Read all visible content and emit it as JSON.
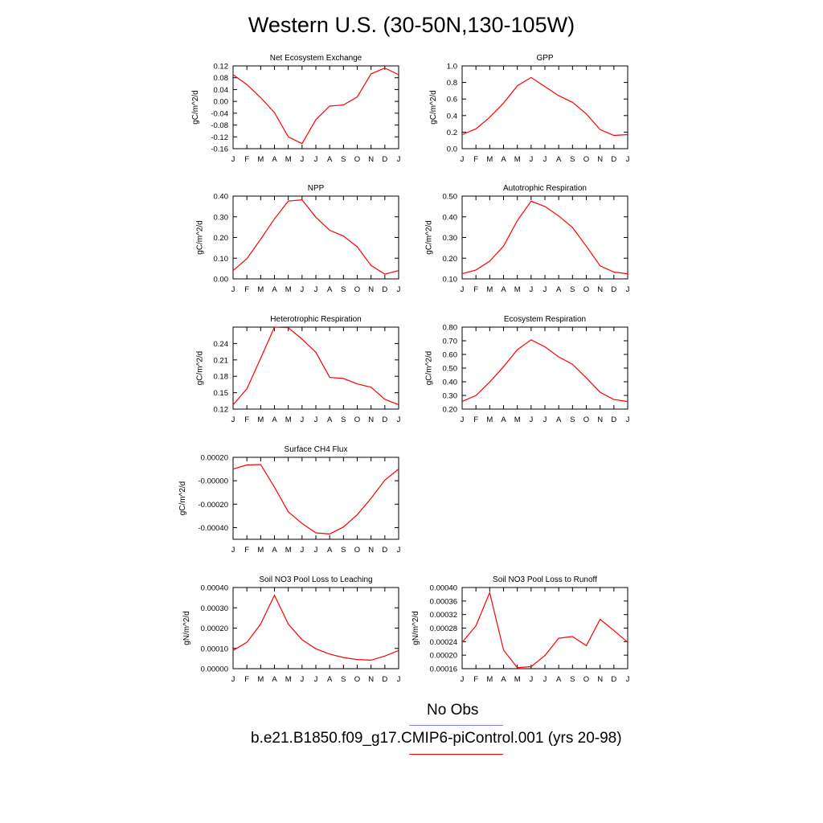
{
  "page": {
    "title": "Western U.S. (30-50N,130-105W)"
  },
  "months": [
    "J",
    "F",
    "M",
    "A",
    "M",
    "J",
    "J",
    "A",
    "S",
    "O",
    "N",
    "D",
    "J"
  ],
  "colors": {
    "model": "#ff0000",
    "obs": "#8080ff",
    "axis": "#000000"
  },
  "legend": {
    "obs_label": "No Obs",
    "model_label": "b.e21.B1850.f09_g17.CMIP6-piControl.001 (yrs 20-98)"
  },
  "chart_data": [
    {
      "type": "line",
      "title": "Net Ecosystem Exchange",
      "ylabel": "gC/m^2/d",
      "categories": [
        "J",
        "F",
        "M",
        "A",
        "M",
        "J",
        "J",
        "A",
        "S",
        "O",
        "N",
        "D",
        "J"
      ],
      "ylim": [
        -0.16,
        0.12
      ],
      "yticks": [
        0.12,
        0.08,
        0.04,
        0.0,
        -0.04,
        -0.08,
        -0.12,
        -0.16
      ],
      "ytick_labels": [
        "0.12",
        "0.08",
        "0.04",
        "0.00",
        "-0.04",
        "-0.08",
        "-0.12",
        "-0.16"
      ],
      "series": [
        {
          "values": [
            0.09,
            0.057,
            0.013,
            -0.038,
            -0.12,
            -0.143,
            -0.062,
            -0.016,
            -0.012,
            0.015,
            0.093,
            0.113,
            0.09
          ]
        }
      ]
    },
    {
      "type": "line",
      "title": "GPP",
      "ylabel": "gC/m^2/d",
      "categories": [
        "J",
        "F",
        "M",
        "A",
        "M",
        "J",
        "J",
        "A",
        "S",
        "O",
        "N",
        "D",
        "J"
      ],
      "ylim": [
        0.0,
        1.0
      ],
      "yticks": [
        1.0,
        0.8,
        0.6,
        0.4,
        0.2,
        0.0
      ],
      "ytick_labels": [
        "1.0",
        "0.8",
        "0.6",
        "0.4",
        "0.2",
        "0.0"
      ],
      "series": [
        {
          "values": [
            0.17,
            0.24,
            0.38,
            0.55,
            0.76,
            0.86,
            0.75,
            0.64,
            0.56,
            0.42,
            0.23,
            0.16,
            0.17
          ]
        }
      ]
    },
    {
      "type": "line",
      "title": "NPP",
      "ylabel": "gC/m^2/d",
      "categories": [
        "J",
        "F",
        "M",
        "A",
        "M",
        "J",
        "J",
        "A",
        "S",
        "O",
        "N",
        "D",
        "J"
      ],
      "ylim": [
        0.0,
        0.4
      ],
      "yticks": [
        0.4,
        0.3,
        0.2,
        0.1,
        0.0
      ],
      "ytick_labels": [
        "0.40",
        "0.30",
        "0.20",
        "0.10",
        "0.00"
      ],
      "series": [
        {
          "values": [
            0.04,
            0.098,
            0.192,
            0.29,
            0.376,
            0.382,
            0.298,
            0.235,
            0.207,
            0.155,
            0.065,
            0.023,
            0.04
          ]
        }
      ]
    },
    {
      "type": "line",
      "title": "Autotrophic Respiration",
      "ylabel": "gC/m^2/d",
      "categories": [
        "J",
        "F",
        "M",
        "A",
        "M",
        "J",
        "J",
        "A",
        "S",
        "O",
        "N",
        "D",
        "J"
      ],
      "ylim": [
        0.1,
        0.5
      ],
      "yticks": [
        0.5,
        0.4,
        0.3,
        0.2,
        0.1
      ],
      "ytick_labels": [
        "0.50",
        "0.40",
        "0.30",
        "0.20",
        "0.10"
      ],
      "series": [
        {
          "values": [
            0.125,
            0.143,
            0.186,
            0.258,
            0.382,
            0.475,
            0.45,
            0.404,
            0.348,
            0.258,
            0.163,
            0.133,
            0.125
          ]
        }
      ]
    },
    {
      "type": "line",
      "title": "Heterotrophic Respiration",
      "ylabel": "gC/m^2/d",
      "categories": [
        "J",
        "F",
        "M",
        "A",
        "M",
        "J",
        "J",
        "A",
        "S",
        "O",
        "N",
        "D",
        "J"
      ],
      "ylim": [
        0.12,
        0.27
      ],
      "yticks": [
        0.24,
        0.21,
        0.18,
        0.15,
        0.12
      ],
      "ytick_labels": [
        "0.24",
        "0.21",
        "0.18",
        "0.15",
        "0.12"
      ],
      "series": [
        {
          "values": [
            0.128,
            0.157,
            0.213,
            0.27,
            0.269,
            0.248,
            0.224,
            0.178,
            0.176,
            0.166,
            0.16,
            0.138,
            0.128
          ]
        }
      ]
    },
    {
      "type": "line",
      "title": "Ecosystem Respiration",
      "ylabel": "gC/m^2/d",
      "categories": [
        "J",
        "F",
        "M",
        "A",
        "M",
        "J",
        "J",
        "A",
        "S",
        "O",
        "N",
        "D",
        "J"
      ],
      "ylim": [
        0.2,
        0.8
      ],
      "yticks": [
        0.8,
        0.7,
        0.6,
        0.5,
        0.4,
        0.3,
        0.2
      ],
      "ytick_labels": [
        "0.80",
        "0.70",
        "0.60",
        "0.50",
        "0.40",
        "0.30",
        "0.20"
      ],
      "series": [
        {
          "values": [
            0.255,
            0.3,
            0.398,
            0.51,
            0.635,
            0.707,
            0.656,
            0.582,
            0.528,
            0.428,
            0.323,
            0.27,
            0.255
          ]
        }
      ]
    },
    {
      "type": "line",
      "title": "Surface CH4 Flux",
      "ylabel": "gC/m^2/d",
      "categories": [
        "J",
        "F",
        "M",
        "A",
        "M",
        "J",
        "J",
        "A",
        "S",
        "O",
        "N",
        "D",
        "J"
      ],
      "ylim": [
        -0.0005,
        0.0002
      ],
      "yticks": [
        0.0002,
        0.0,
        -0.0002,
        -0.0004
      ],
      "ytick_labels": [
        "0.00020",
        "-0.00000",
        "-0.00020",
        "-0.00040"
      ],
      "series": [
        {
          "values": [
            0.0001,
            0.000135,
            0.000138,
            -5.5e-05,
            -0.000265,
            -0.000365,
            -0.000445,
            -0.000455,
            -0.000395,
            -0.00029,
            -0.00015,
            5e-06,
            0.0001
          ]
        }
      ]
    },
    {
      "type": "line",
      "title": "Soil NO3 Pool Loss to Leaching",
      "ylabel": "gN/m^2/d",
      "categories": [
        "J",
        "F",
        "M",
        "A",
        "M",
        "J",
        "J",
        "A",
        "S",
        "O",
        "N",
        "D",
        "J"
      ],
      "ylim": [
        0.0,
        0.0004
      ],
      "yticks": [
        0.0004,
        0.0003,
        0.0002,
        0.0001,
        0.0
      ],
      "ytick_labels": [
        "0.00040",
        "0.00030",
        "0.00020",
        "0.00010",
        "0.00000"
      ],
      "series": [
        {
          "values": [
            9e-05,
            0.00013,
            0.00022,
            0.000362,
            0.00022,
            0.000143,
            9.8e-05,
            7.2e-05,
            5.5e-05,
            4.5e-05,
            4.2e-05,
            6.2e-05,
            9e-05
          ]
        }
      ]
    },
    {
      "type": "line",
      "title": "Soil NO3 Pool Loss to Runoff",
      "ylabel": "gN/m^2/d",
      "categories": [
        "J",
        "F",
        "M",
        "A",
        "M",
        "J",
        "J",
        "A",
        "S",
        "O",
        "N",
        "D",
        "J"
      ],
      "ylim": [
        0.00016,
        0.0004
      ],
      "yticks": [
        0.0004,
        0.00036,
        0.00032,
        0.00028,
        0.00024,
        0.0002,
        0.00016
      ],
      "ytick_labels": [
        "0.00040",
        "0.00036",
        "0.00032",
        "0.00028",
        "0.00024",
        "0.00020",
        "0.00016"
      ],
      "series": [
        {
          "values": [
            0.000238,
            0.000287,
            0.000385,
            0.000215,
            0.000163,
            0.000166,
            0.000199,
            0.00025,
            0.000255,
            0.000228,
            0.000306,
            0.000273,
            0.000238
          ]
        }
      ]
    }
  ]
}
